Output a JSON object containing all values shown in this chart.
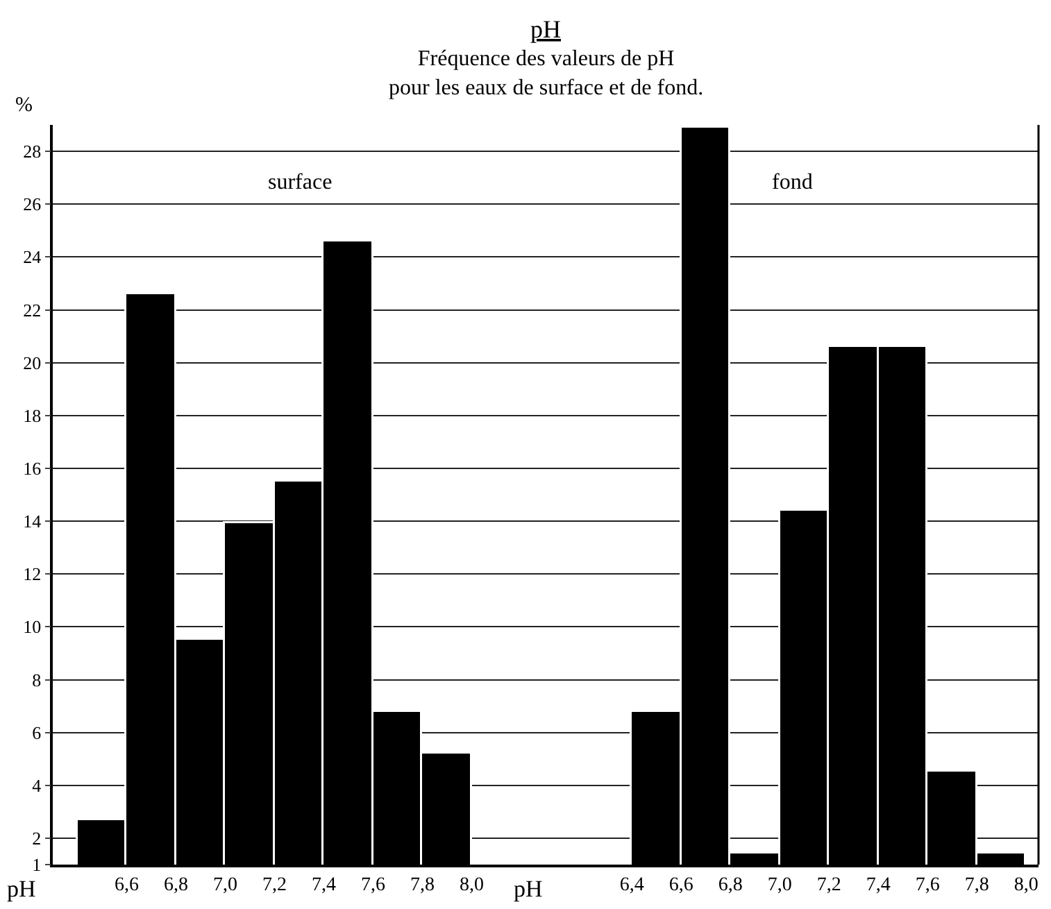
{
  "chart_data": [
    {
      "type": "histogram",
      "title": "pH",
      "subtitle": "Fréquence des valeurs de pH\npour les eaux de surface et de fond.",
      "ylabel": "%",
      "xlabel": "pH",
      "annotations": [
        "surface"
      ],
      "bins": [
        6.4,
        6.6,
        6.8,
        7.0,
        7.2,
        7.4,
        7.6,
        7.8,
        8.0
      ],
      "values": [
        2.7,
        22.6,
        9.5,
        13.9,
        15.5,
        24.6,
        6.8,
        5.2
      ],
      "color": "#000000",
      "xlim": [
        6.3,
        8.3
      ],
      "xticks": [
        {
          "value": 6.6,
          "label": "6,6"
        },
        {
          "value": 6.8,
          "label": "6,8"
        },
        {
          "value": 7.0,
          "label": "7,0"
        },
        {
          "value": 7.2,
          "label": "7,2"
        },
        {
          "value": 7.4,
          "label": "7,4"
        },
        {
          "value": 7.6,
          "label": "7,6"
        },
        {
          "value": 7.8,
          "label": "7,8"
        },
        {
          "value": 8.0,
          "label": "8,0"
        }
      ],
      "ylim": [
        1,
        29
      ],
      "yticks": [
        1,
        2,
        4,
        6,
        8,
        10,
        12,
        14,
        16,
        18,
        20,
        22,
        24,
        26,
        28
      ],
      "grid": "y"
    },
    {
      "type": "histogram",
      "xlabel": "pH",
      "annotations": [
        "fond"
      ],
      "bins": [
        6.4,
        6.6,
        6.8,
        7.0,
        7.2,
        7.4,
        7.6,
        7.8,
        8.0
      ],
      "values": [
        6.8,
        28.9,
        1.4,
        14.4,
        20.6,
        20.6,
        4.5,
        1.4
      ],
      "color": "#000000",
      "xlim": [
        6.05,
        8.05
      ],
      "xticks": [
        {
          "value": 6.4,
          "label": "6,4"
        },
        {
          "value": 6.6,
          "label": "6,6"
        },
        {
          "value": 6.8,
          "label": "6,8"
        },
        {
          "value": 7.0,
          "label": "7,0"
        },
        {
          "value": 7.2,
          "label": "7,2"
        },
        {
          "value": 7.4,
          "label": "7,4"
        },
        {
          "value": 7.6,
          "label": "7,6"
        },
        {
          "value": 7.8,
          "label": "7,8"
        },
        {
          "value": 8.0,
          "label": "8,0"
        }
      ],
      "ylim": [
        1,
        29
      ],
      "yticks": [
        1,
        2,
        4,
        6,
        8,
        10,
        12,
        14,
        16,
        18,
        20,
        22,
        24,
        26,
        28
      ],
      "grid": "y",
      "tick_labels": "x"
    }
  ]
}
